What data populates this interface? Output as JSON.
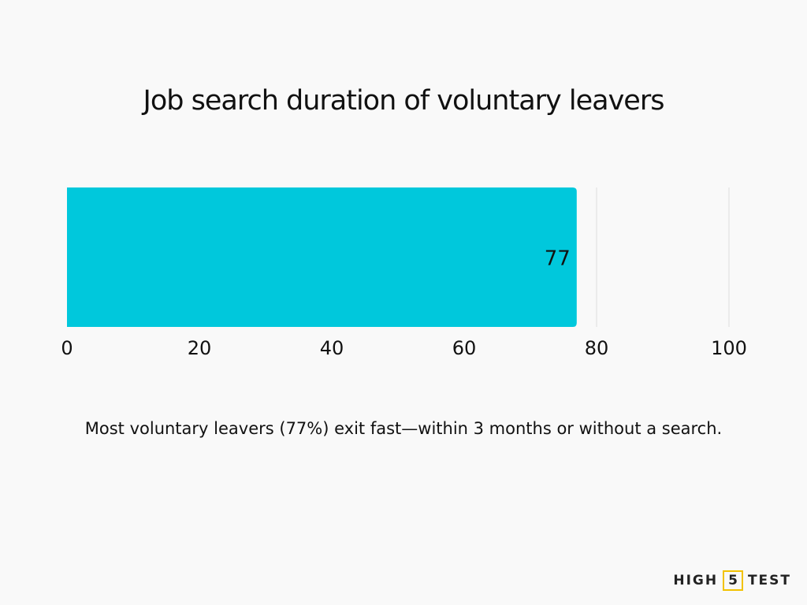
{
  "chart_data": {
    "type": "bar",
    "orientation": "horizontal",
    "title": "Job search duration of voluntary leavers",
    "categories": [
      ""
    ],
    "values": [
      77
    ],
    "data_labels": [
      "77"
    ],
    "xlim": [
      0,
      100
    ],
    "x_ticks": [
      0,
      20,
      40,
      60,
      80,
      100
    ],
    "x_tick_labels": [
      "0",
      "20",
      "40",
      "60",
      "80",
      "100"
    ],
    "grid": true,
    "legend": "none",
    "xlabel": "",
    "ylabel": ""
  },
  "caption": "Most voluntary leavers (77%) exit fast—within 3 months or without a search.",
  "logo": {
    "left": "HIGH",
    "middle": "5",
    "right": "TEST"
  },
  "colors": {
    "bar": "#00c8dc",
    "grid": "#dddddd",
    "background": "#f9f9f9",
    "logo_accent": "#f2c200"
  }
}
